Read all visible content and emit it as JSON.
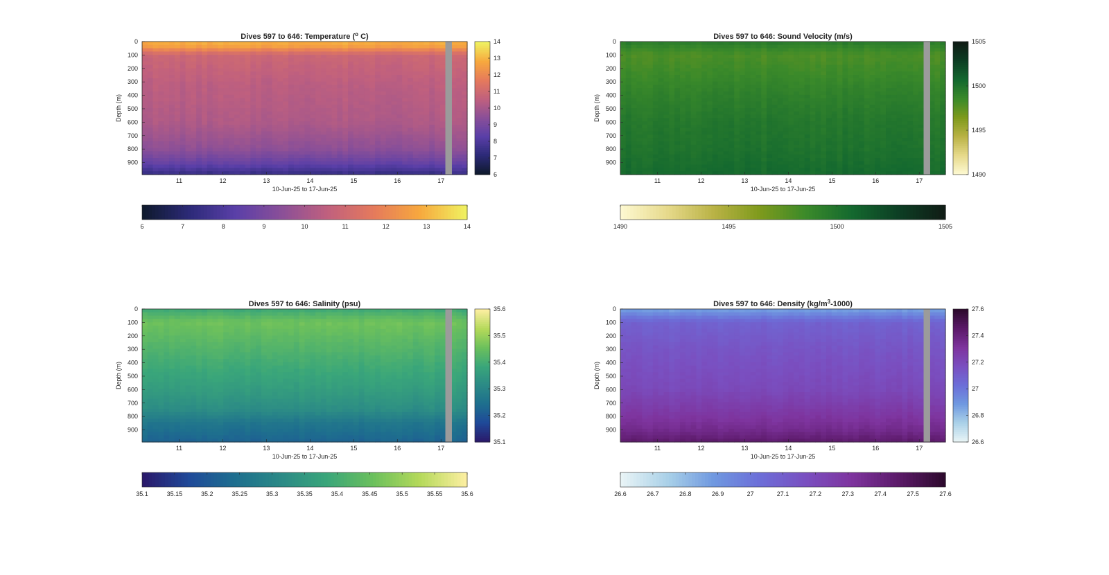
{
  "chart_data": [
    {
      "type": "heatmap",
      "title": "Dives 597 to 646: Temperature (",
      "title_sup": "o",
      "title_end": " C)",
      "ylabel": "Depth (m)",
      "xlabel": "10-Jun-25 to 17-Jun-25",
      "x_ticks": [
        "11",
        "12",
        "13",
        "14",
        "15",
        "16",
        "17"
      ],
      "x_range": [
        10.15,
        17.6
      ],
      "y_ticks": [
        "0",
        "100",
        "200",
        "300",
        "400",
        "500",
        "600",
        "700",
        "800",
        "900"
      ],
      "y_range": [
        0,
        990
      ],
      "gap_x": [
        17.1,
        17.25
      ],
      "color_range": [
        6,
        14
      ],
      "colorbar_ticks": [
        "6",
        "7",
        "8",
        "9",
        "10",
        "11",
        "12",
        "13",
        "14"
      ],
      "horizontal_colorbar_ticks": [
        "6",
        "7",
        "8",
        "9",
        "10",
        "11",
        "12",
        "13",
        "14"
      ],
      "colormap": [
        "#0f1a2e",
        "#2c2a78",
        "#5a3fa8",
        "#8a4f98",
        "#c0607e",
        "#e57a5c",
        "#f7a83e",
        "#f0f060"
      ],
      "profile": [
        [
          0,
          13.0
        ],
        [
          40,
          12.6
        ],
        [
          100,
          10.9
        ],
        [
          300,
          10.5
        ],
        [
          600,
          10.2
        ],
        [
          800,
          9.5
        ],
        [
          900,
          8.6
        ],
        [
          990,
          7.4
        ]
      ]
    },
    {
      "type": "heatmap",
      "title": "Dives 597 to 646: Sound Velocity (m/s)",
      "ylabel": "Depth (m)",
      "xlabel": "10-Jun-25 to 17-Jun-25",
      "x_ticks": [
        "11",
        "12",
        "13",
        "14",
        "15",
        "16",
        "17"
      ],
      "x_range": [
        10.15,
        17.6
      ],
      "y_ticks": [
        "0",
        "100",
        "200",
        "300",
        "400",
        "500",
        "600",
        "700",
        "800",
        "900"
      ],
      "y_range": [
        0,
        990
      ],
      "gap_x": [
        17.1,
        17.25
      ],
      "color_range": [
        1490,
        1505
      ],
      "colorbar_ticks": [
        "1490",
        "1495",
        "1500",
        "1505"
      ],
      "horizontal_colorbar_ticks": [
        "1490",
        "1495",
        "1500",
        "1505"
      ],
      "colormap": [
        "#fdf8d0",
        "#e6d98a",
        "#b9b245",
        "#7e9a1c",
        "#3b8a2a",
        "#14692f",
        "#0d3f24",
        "#101d16"
      ],
      "profile": [
        [
          0,
          1499.5
        ],
        [
          100,
          1498.0
        ],
        [
          200,
          1498.4
        ],
        [
          400,
          1499.2
        ],
        [
          600,
          1499.8
        ],
        [
          800,
          1500.1
        ],
        [
          990,
          1500.6
        ]
      ]
    },
    {
      "type": "heatmap",
      "title": "Dives 597 to 646: Salinity (psu)",
      "ylabel": "Depth (m)",
      "xlabel": "10-Jun-25 to 17-Jun-25",
      "x_ticks": [
        "11",
        "12",
        "13",
        "14",
        "15",
        "16",
        "17"
      ],
      "x_range": [
        10.15,
        17.6
      ],
      "y_ticks": [
        "0",
        "100",
        "200",
        "300",
        "400",
        "500",
        "600",
        "700",
        "800",
        "900"
      ],
      "y_range": [
        0,
        990
      ],
      "gap_x": [
        17.1,
        17.25
      ],
      "color_range": [
        35.1,
        35.6
      ],
      "colorbar_ticks": [
        "35.1",
        "35.2",
        "35.3",
        "35.4",
        "35.5",
        "35.6"
      ],
      "horizontal_colorbar_ticks": [
        "35.1",
        "35.15",
        "35.2",
        "35.25",
        "35.3",
        "35.35",
        "35.4",
        "35.45",
        "35.5",
        "35.55",
        "35.6"
      ],
      "colormap": [
        "#2a1a6b",
        "#1f4a99",
        "#1e6f8e",
        "#2b8a86",
        "#3aa67a",
        "#6cc05c",
        "#b4d95a",
        "#fbeea0"
      ],
      "profile": [
        [
          0,
          35.39
        ],
        [
          100,
          35.46
        ],
        [
          200,
          35.44
        ],
        [
          400,
          35.4
        ],
        [
          600,
          35.36
        ],
        [
          750,
          35.32
        ],
        [
          850,
          35.26
        ],
        [
          990,
          35.22
        ]
      ]
    },
    {
      "type": "heatmap",
      "title": "Dives 597 to 646: Density (kg/m",
      "title_sup": "3",
      "title_end": "-1000)",
      "ylabel": "Depth (m)",
      "xlabel": "10-Jun-25 to 17-Jun-25",
      "x_ticks": [
        "11",
        "12",
        "13",
        "14",
        "15",
        "16",
        "17"
      ],
      "x_range": [
        10.15,
        17.6
      ],
      "y_ticks": [
        "0",
        "100",
        "200",
        "300",
        "400",
        "500",
        "600",
        "700",
        "800",
        "900"
      ],
      "y_range": [
        0,
        990
      ],
      "gap_x": [
        17.1,
        17.25
      ],
      "color_range": [
        26.6,
        27.6
      ],
      "colorbar_ticks": [
        "26.6",
        "26.8",
        "27",
        "27.2",
        "27.4",
        "27.6"
      ],
      "horizontal_colorbar_ticks": [
        "26.6",
        "26.7",
        "26.8",
        "26.9",
        "27",
        "27.1",
        "27.2",
        "27.3",
        "27.4",
        "27.5",
        "27.6"
      ],
      "colormap": [
        "#e8f4f6",
        "#a9d0e8",
        "#6f98e0",
        "#6c6ed8",
        "#7a4fc0",
        "#7e349e",
        "#5c1a6a",
        "#2e0a2e"
      ],
      "profile": [
        [
          0,
          26.85
        ],
        [
          100,
          27.08
        ],
        [
          300,
          27.14
        ],
        [
          600,
          27.2
        ],
        [
          800,
          27.3
        ],
        [
          900,
          27.36
        ],
        [
          990,
          27.45
        ]
      ]
    }
  ]
}
